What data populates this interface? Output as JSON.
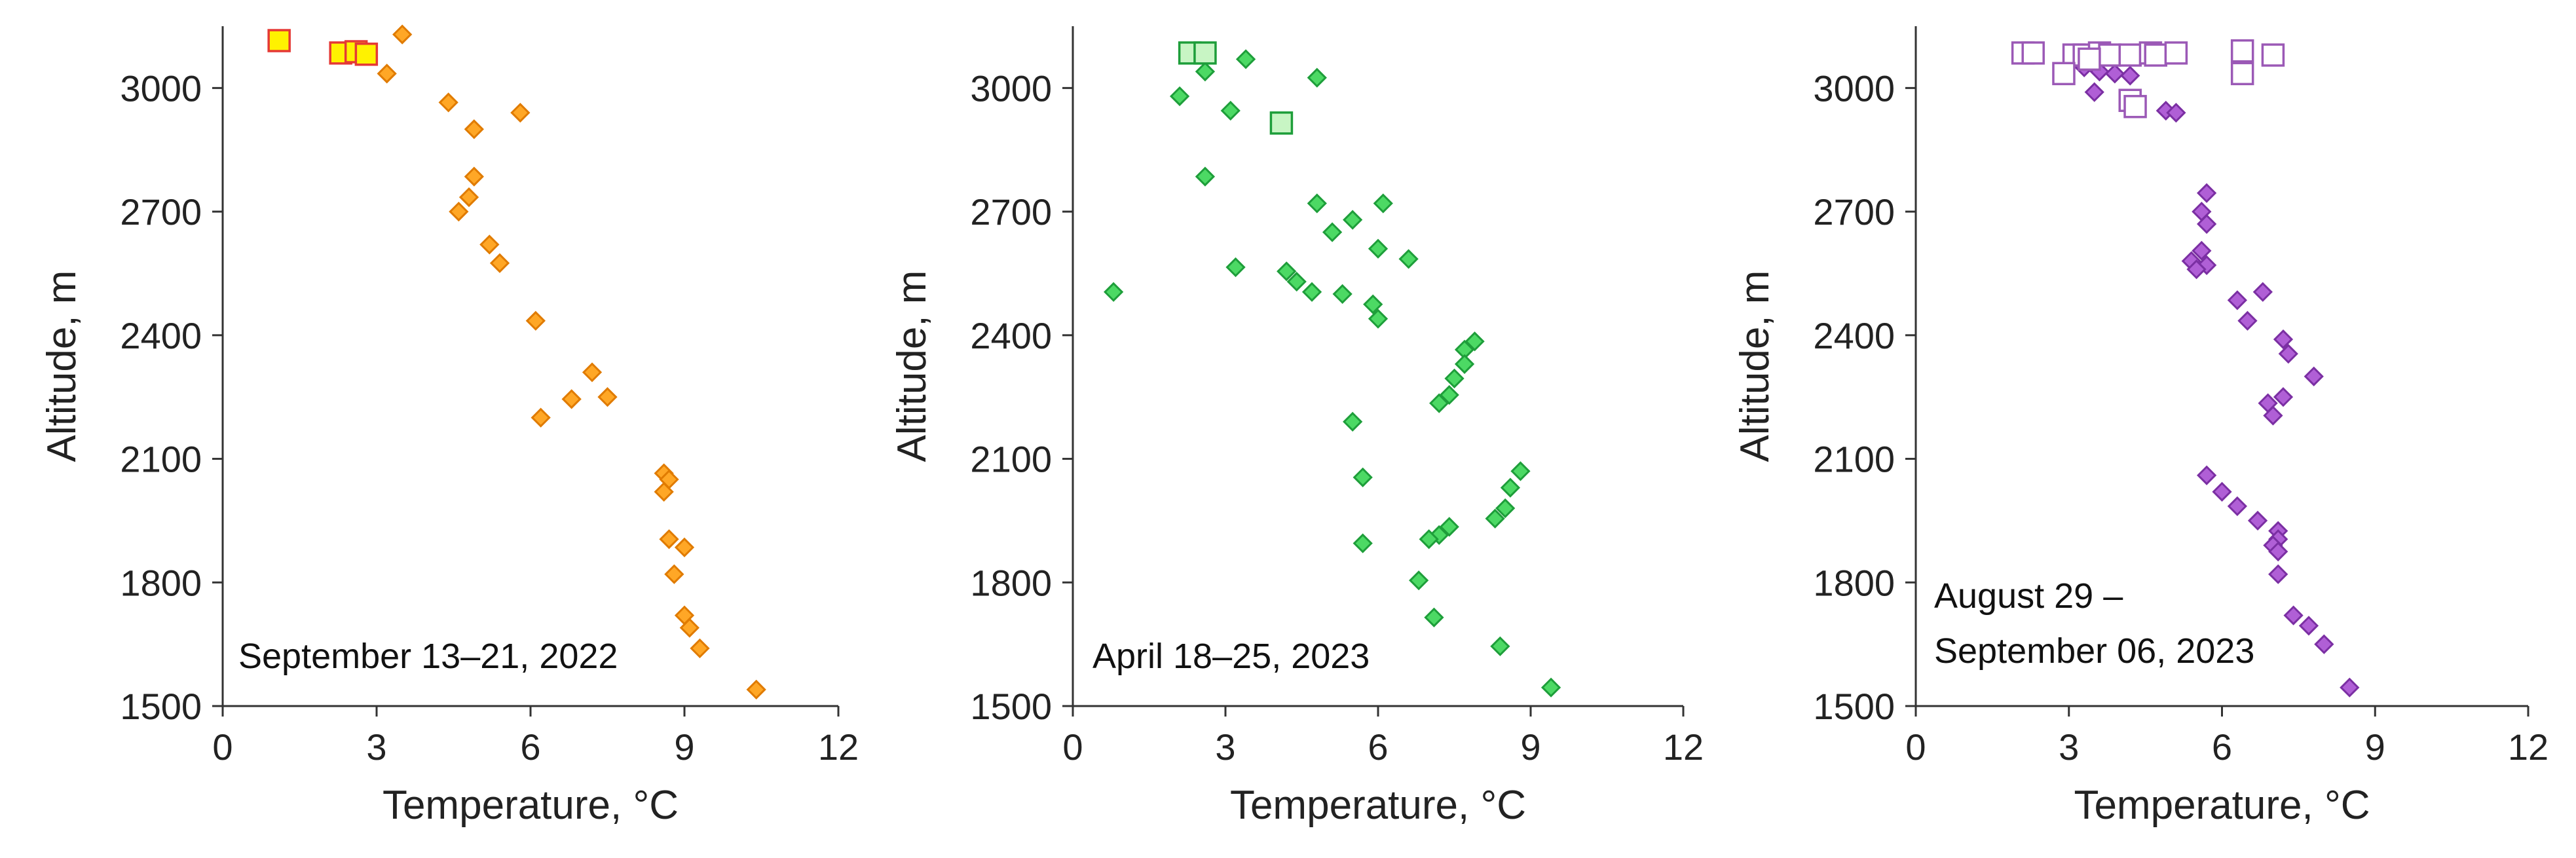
{
  "chart_data": [
    {
      "type": "scatter",
      "annotation": [
        "September 13–21, 2022"
      ],
      "xlabel": "Temperature, °C",
      "ylabel": "Altitude, m",
      "xlim": [
        0,
        12
      ],
      "ylim": [
        1500,
        3150
      ],
      "xticks": [
        0,
        3,
        6,
        9,
        12
      ],
      "yticks": [
        1500,
        1800,
        2100,
        2400,
        2700,
        3000
      ],
      "grid": false,
      "colors": {
        "diamond_fill": "#ffa726",
        "diamond_stroke": "#e07b00",
        "square_fill": "#fff200",
        "square_stroke": "#e53935"
      },
      "diamonds": [
        [
          3.5,
          3130
        ],
        [
          3.2,
          3035
        ],
        [
          4.4,
          2965
        ],
        [
          5.8,
          2940
        ],
        [
          4.9,
          2900
        ],
        [
          4.9,
          2785
        ],
        [
          4.8,
          2735
        ],
        [
          4.6,
          2700
        ],
        [
          5.2,
          2620
        ],
        [
          5.4,
          2575
        ],
        [
          6.1,
          2435
        ],
        [
          7.2,
          2310
        ],
        [
          7.5,
          2250
        ],
        [
          6.8,
          2245
        ],
        [
          6.2,
          2200
        ],
        [
          8.6,
          2065
        ],
        [
          8.7,
          2050
        ],
        [
          8.6,
          2020
        ],
        [
          8.7,
          1905
        ],
        [
          9.0,
          1885
        ],
        [
          8.8,
          1820
        ],
        [
          9.0,
          1720
        ],
        [
          9.1,
          1690
        ],
        [
          9.3,
          1640
        ],
        [
          10.4,
          1540
        ]
      ],
      "squares": [
        [
          1.1,
          3115
        ],
        [
          2.3,
          3085
        ],
        [
          2.6,
          3088
        ],
        [
          2.8,
          3082
        ]
      ]
    },
    {
      "type": "scatter",
      "annotation": [
        "April 18–25, 2023"
      ],
      "xlabel": "Temperature, °C",
      "ylabel": "Altitude, m",
      "xlim": [
        0,
        12
      ],
      "ylim": [
        1500,
        3150
      ],
      "xticks": [
        0,
        3,
        6,
        9,
        12
      ],
      "yticks": [
        1500,
        1800,
        2100,
        2400,
        2700,
        3000
      ],
      "grid": false,
      "colors": {
        "diamond_fill": "#4cd964",
        "diamond_stroke": "#1e9e3a",
        "square_fill": "#c8f5c4",
        "square_stroke": "#1e9e3a"
      },
      "diamonds": [
        [
          3.4,
          3070
        ],
        [
          2.6,
          3040
        ],
        [
          4.8,
          3025
        ],
        [
          2.1,
          2980
        ],
        [
          3.1,
          2945
        ],
        [
          2.6,
          2785
        ],
        [
          4.8,
          2720
        ],
        [
          6.1,
          2720
        ],
        [
          5.5,
          2680
        ],
        [
          5.1,
          2650
        ],
        [
          6.0,
          2610
        ],
        [
          6.6,
          2585
        ],
        [
          3.2,
          2565
        ],
        [
          4.2,
          2555
        ],
        [
          4.4,
          2530
        ],
        [
          0.8,
          2505
        ],
        [
          4.7,
          2505
        ],
        [
          5.3,
          2500
        ],
        [
          5.9,
          2475
        ],
        [
          6.0,
          2440
        ],
        [
          7.9,
          2385
        ],
        [
          7.7,
          2365
        ],
        [
          7.7,
          2330
        ],
        [
          7.5,
          2295
        ],
        [
          7.4,
          2255
        ],
        [
          7.2,
          2235
        ],
        [
          5.5,
          2190
        ],
        [
          8.8,
          2070
        ],
        [
          8.6,
          2030
        ],
        [
          5.7,
          2055
        ],
        [
          8.5,
          1980
        ],
        [
          8.3,
          1955
        ],
        [
          7.4,
          1935
        ],
        [
          7.2,
          1915
        ],
        [
          7.0,
          1905
        ],
        [
          5.7,
          1895
        ],
        [
          6.8,
          1805
        ],
        [
          7.1,
          1715
        ],
        [
          8.4,
          1645
        ],
        [
          9.4,
          1545
        ]
      ],
      "squares": [
        [
          2.3,
          3085
        ],
        [
          2.6,
          3085
        ],
        [
          4.1,
          2915
        ]
      ]
    },
    {
      "type": "scatter",
      "annotation": [
        "August 29  –",
        "September 06, 2023"
      ],
      "xlabel": "Temperature, °C",
      "ylabel": "Altitude, m",
      "xlim": [
        0,
        12
      ],
      "ylim": [
        1500,
        3150
      ],
      "xticks": [
        0,
        3,
        6,
        9,
        12
      ],
      "yticks": [
        1500,
        1800,
        2100,
        2400,
        2700,
        3000
      ],
      "grid": false,
      "colors": {
        "diamond_fill": "#b05fd6",
        "diamond_stroke": "#7b2fa3",
        "square_fill": "#ffffff",
        "square_stroke": "#9b59b6"
      },
      "diamonds": [
        [
          3.3,
          3050
        ],
        [
          3.6,
          3040
        ],
        [
          3.9,
          3035
        ],
        [
          4.2,
          3030
        ],
        [
          3.5,
          2990
        ],
        [
          4.9,
          2945
        ],
        [
          5.1,
          2940
        ],
        [
          5.7,
          2745
        ],
        [
          5.6,
          2700
        ],
        [
          5.7,
          2670
        ],
        [
          5.6,
          2605
        ],
        [
          5.4,
          2580
        ],
        [
          5.7,
          2570
        ],
        [
          5.5,
          2560
        ],
        [
          6.8,
          2505
        ],
        [
          6.3,
          2485
        ],
        [
          6.5,
          2435
        ],
        [
          7.2,
          2390
        ],
        [
          7.3,
          2355
        ],
        [
          7.8,
          2300
        ],
        [
          7.2,
          2250
        ],
        [
          6.9,
          2235
        ],
        [
          7.0,
          2205
        ],
        [
          5.7,
          2060
        ],
        [
          6.0,
          2020
        ],
        [
          6.3,
          1985
        ],
        [
          6.7,
          1950
        ],
        [
          7.1,
          1925
        ],
        [
          7.1,
          1905
        ],
        [
          7.0,
          1890
        ],
        [
          7.1,
          1875
        ],
        [
          7.1,
          1820
        ],
        [
          7.4,
          1720
        ],
        [
          7.7,
          1695
        ],
        [
          8.0,
          1650
        ],
        [
          8.5,
          1545
        ]
      ],
      "squares": [
        [
          2.1,
          3085
        ],
        [
          2.3,
          3085
        ],
        [
          3.1,
          3080
        ],
        [
          3.3,
          3080
        ],
        [
          3.6,
          3085
        ],
        [
          3.8,
          3080
        ],
        [
          4.2,
          3080
        ],
        [
          4.6,
          3085
        ],
        [
          4.7,
          3080
        ],
        [
          5.1,
          3085
        ],
        [
          6.4,
          3090
        ],
        [
          7.0,
          3080
        ],
        [
          2.9,
          3035
        ],
        [
          3.4,
          3070
        ],
        [
          6.4,
          3035
        ],
        [
          4.2,
          2970
        ],
        [
          4.3,
          2955
        ]
      ]
    }
  ]
}
